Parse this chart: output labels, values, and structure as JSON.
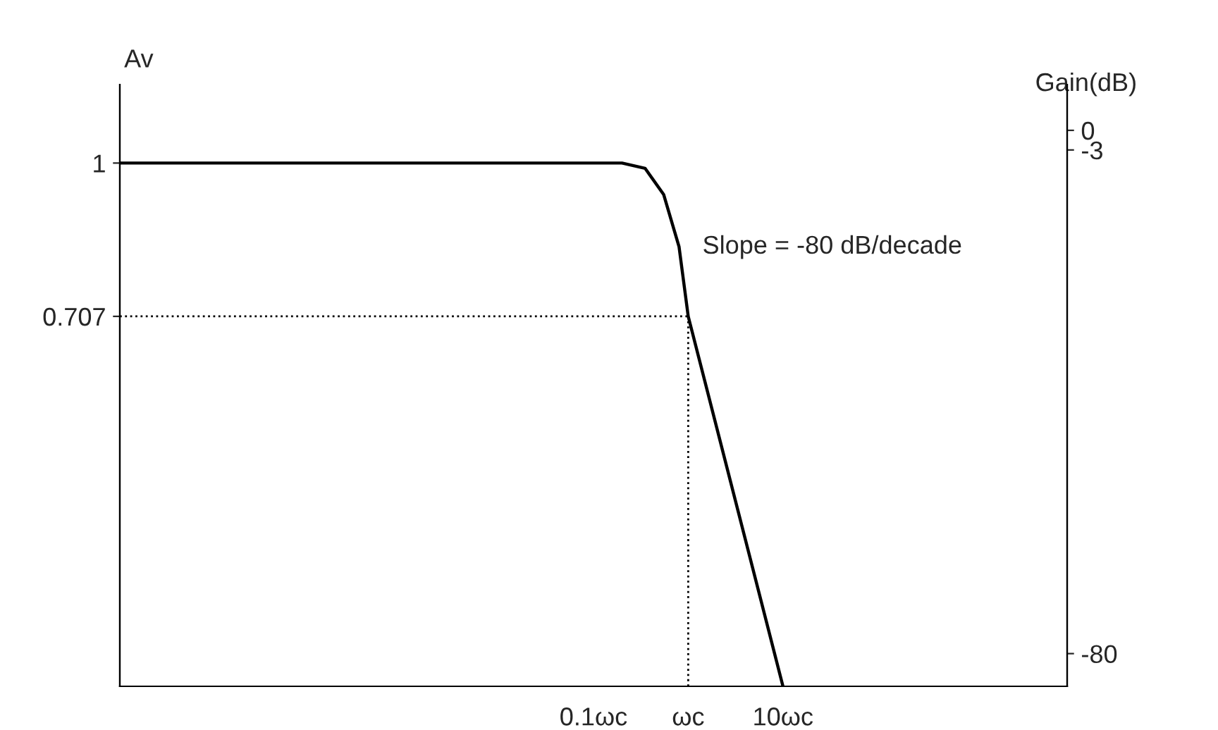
{
  "chart_data": {
    "type": "line",
    "xlabel": null,
    "ylabel": "Av",
    "y2label": "Gain(dB)",
    "log": "x",
    "xlim": [
      1e-06,
      10000
    ],
    "xticks": [
      {
        "value": 0.1,
        "label": "0.1ωc"
      },
      {
        "value": 1,
        "label": "ωc"
      },
      {
        "value": 10,
        "label": "10ωc"
      }
    ],
    "ylim": [
      0,
      1.15
    ],
    "yticks": [
      0.707,
      1
    ],
    "y2lim": [
      -85,
      7
    ],
    "y2ticks": [
      -80,
      -3,
      0
    ],
    "series": [
      {
        "color": "#000000",
        "x": [
          1e-06,
          0.2,
          0.35,
          0.55,
          0.8,
          1,
          10
        ],
        "values": [
          1,
          1,
          0.99,
          0.94,
          0.84,
          0.707,
          0
        ]
      }
    ],
    "ref_lines": [
      {
        "axis": "y",
        "value": 0.707,
        "line_style": "dotted",
        "color": "#000000"
      },
      {
        "axis": "x",
        "value": 1,
        "line_style": "dotted",
        "color": "#000000"
      }
    ],
    "annotations": [
      "Slope = -80 dB/decade"
    ],
    "grid": false,
    "legend": false,
    "marker": "none",
    "line_style": "solid"
  }
}
